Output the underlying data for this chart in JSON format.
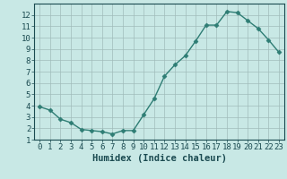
{
  "x": [
    0,
    1,
    2,
    3,
    4,
    5,
    6,
    7,
    8,
    9,
    10,
    11,
    12,
    13,
    14,
    15,
    16,
    17,
    18,
    19,
    20,
    21,
    22,
    23
  ],
  "y": [
    3.9,
    3.6,
    2.8,
    2.5,
    1.9,
    1.8,
    1.7,
    1.5,
    1.8,
    1.8,
    3.2,
    4.6,
    6.6,
    7.6,
    8.4,
    9.7,
    11.1,
    11.1,
    12.3,
    12.2,
    11.5,
    10.8,
    9.8,
    8.7
  ],
  "line_color": "#2e7d74",
  "marker": "D",
  "marker_size": 2.5,
  "bg_color": "#c8e8e5",
  "grid_color_major": "#a0bcba",
  "grid_color_minor": "#b8d4d1",
  "xlabel": "Humidex (Indice chaleur)",
  "xlim": [
    -0.5,
    23.5
  ],
  "ylim": [
    1,
    13
  ],
  "yticks": [
    1,
    2,
    3,
    4,
    5,
    6,
    7,
    8,
    9,
    10,
    11,
    12
  ],
  "xticks": [
    0,
    1,
    2,
    3,
    4,
    5,
    6,
    7,
    8,
    9,
    10,
    11,
    12,
    13,
    14,
    15,
    16,
    17,
    18,
    19,
    20,
    21,
    22,
    23
  ],
  "tick_color": "#1a4a50",
  "label_color": "#1a4a50",
  "font_size": 6.5,
  "xlabel_fontsize": 7.5,
  "linewidth": 1.0
}
